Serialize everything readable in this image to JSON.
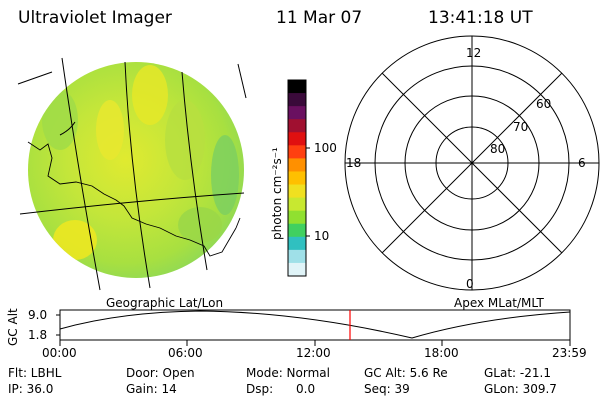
{
  "header": {
    "title": "Ultraviolet Imager",
    "date": "11 Mar 07",
    "time": "13:41:18 UT"
  },
  "colorbar": {
    "unit_label": "photon cm⁻²s⁻¹",
    "ticks": [
      "100",
      "10"
    ],
    "colors": [
      "#000000",
      "#3a0a3a",
      "#6a1060",
      "#a01030",
      "#e01010",
      "#ff4010",
      "#ff9000",
      "#ffc000",
      "#f0e020",
      "#c8e830",
      "#90e030",
      "#40d060",
      "#30c0c0",
      "#9fe0e8",
      "#e0f4f8"
    ]
  },
  "polar": {
    "labels": {
      "top": "12",
      "bottom": "0",
      "left": "18",
      "right": "6"
    },
    "rings": [
      "60",
      "70",
      "80"
    ]
  },
  "plot": {
    "left_title": "Geographic Lat/Lon",
    "right_title": "Apex MLat/MLT",
    "ylabel": "GC Alt",
    "yticks": [
      "9.0",
      "1.8"
    ],
    "xticks": [
      "00:00",
      "06:00",
      "12:00",
      "18:00",
      "23:59"
    ],
    "marker_color": "#ff0000"
  },
  "footer": {
    "row1": {
      "filter": "Flt: LBHL",
      "door": "Door: Open",
      "mode": "Mode: Normal",
      "gcalt": "GC Alt: 5.6 Re",
      "glat": "GLat: -21.1"
    },
    "row2": {
      "ip": "IP: 36.0",
      "gain": "Gain: 14",
      "dsp": "Dsp:      0.0",
      "seq": "Seq: 39",
      "glon": "GLon: 309.7"
    }
  }
}
